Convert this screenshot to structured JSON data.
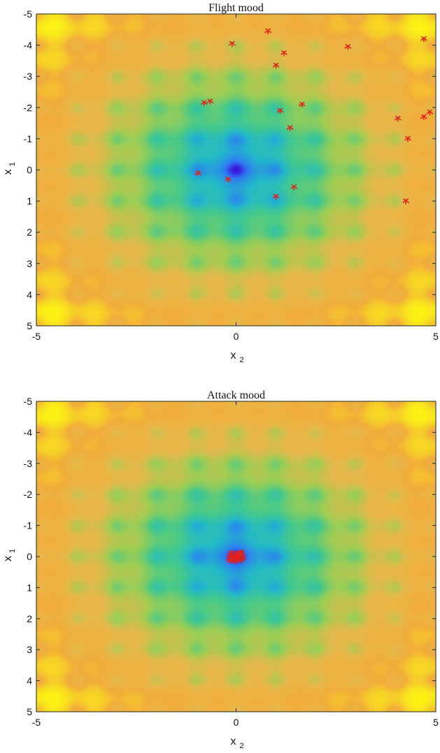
{
  "chart_data": [
    {
      "type": "heatmap",
      "title": "Flight mood",
      "xlabel": "x",
      "xlabel_sub": "2",
      "ylabel": "x",
      "ylabel_sub": "1",
      "xlim": [
        -5,
        5
      ],
      "ylim": [
        -5,
        5
      ],
      "y_reversed": true,
      "xticks": [
        "-5",
        "0",
        "5"
      ],
      "yticks": [
        "-5",
        "-4",
        "-3",
        "-2",
        "-1",
        "0",
        "1",
        "2",
        "3",
        "4",
        "5"
      ],
      "colormap": [
        "#3b0bd8",
        "#2f7af5",
        "#22b9c9",
        "#46c98a",
        "#9fcd54",
        "#e6b84a",
        "#f2ad3b",
        "#fbf414"
      ],
      "marker_color": "#e0231d",
      "points": [
        {
          "x2": 0.8,
          "x1": -4.45
        },
        {
          "x2": -0.1,
          "x1": -4.05
        },
        {
          "x2": 1.2,
          "x1": -3.75
        },
        {
          "x2": 2.8,
          "x1": -3.95
        },
        {
          "x2": 4.7,
          "x1": -4.2
        },
        {
          "x2": 1.0,
          "x1": -3.35
        },
        {
          "x2": -0.8,
          "x1": -2.15
        },
        {
          "x2": -0.65,
          "x1": -2.2
        },
        {
          "x2": 1.1,
          "x1": -1.9
        },
        {
          "x2": 1.65,
          "x1": -2.1
        },
        {
          "x2": 4.05,
          "x1": -1.65
        },
        {
          "x2": 4.7,
          "x1": -1.7
        },
        {
          "x2": 4.85,
          "x1": -1.85
        },
        {
          "x2": 1.35,
          "x1": -1.35
        },
        {
          "x2": 4.3,
          "x1": -1.0
        },
        {
          "x2": -0.95,
          "x1": 0.1
        },
        {
          "x2": -0.2,
          "x1": 0.3
        },
        {
          "x2": 1.45,
          "x1": 0.55
        },
        {
          "x2": 1.0,
          "x1": 0.85
        },
        {
          "x2": 4.25,
          "x1": 1.0
        }
      ]
    },
    {
      "type": "heatmap",
      "title": "Attack mood",
      "xlabel": "x",
      "xlabel_sub": "2",
      "ylabel": "x",
      "ylabel_sub": "1",
      "xlim": [
        -5,
        5
      ],
      "ylim": [
        -5,
        5
      ],
      "y_reversed": true,
      "xticks": [
        "-5",
        "0",
        "5"
      ],
      "yticks": [
        "-5",
        "-4",
        "-3",
        "-2",
        "-1",
        "0",
        "1",
        "2",
        "3",
        "4",
        "5"
      ],
      "colormap": [
        "#3b0bd8",
        "#2f7af5",
        "#22b9c9",
        "#46c98a",
        "#9fcd54",
        "#e6b84a",
        "#f2ad3b",
        "#fbf414"
      ],
      "marker_color": "#e0231d",
      "points": [
        {
          "x2": -0.15,
          "x1": -0.05
        },
        {
          "x2": -0.1,
          "x1": 0.05
        },
        {
          "x2": 0.0,
          "x1": -0.1
        },
        {
          "x2": 0.05,
          "x1": 0.1
        },
        {
          "x2": 0.1,
          "x1": 0.0
        },
        {
          "x2": -0.05,
          "x1": 0.1
        },
        {
          "x2": 0.15,
          "x1": -0.05
        },
        {
          "x2": 0.0,
          "x1": 0.05
        },
        {
          "x2": -0.12,
          "x1": -0.12
        },
        {
          "x2": 0.08,
          "x1": -0.12
        },
        {
          "x2": -0.18,
          "x1": 0.08
        },
        {
          "x2": 0.12,
          "x1": 0.12
        },
        {
          "x2": 0.18,
          "x1": 0.05
        },
        {
          "x2": -0.08,
          "x1": 0.0
        },
        {
          "x2": 0.02,
          "x1": -0.02
        },
        {
          "x2": -0.02,
          "x1": 0.15
        },
        {
          "x2": 0.06,
          "x1": -0.06
        },
        {
          "x2": -0.14,
          "x1": 0.14
        },
        {
          "x2": 0.14,
          "x1": -0.14
        },
        {
          "x2": 0.0,
          "x1": 0.0
        }
      ]
    }
  ]
}
